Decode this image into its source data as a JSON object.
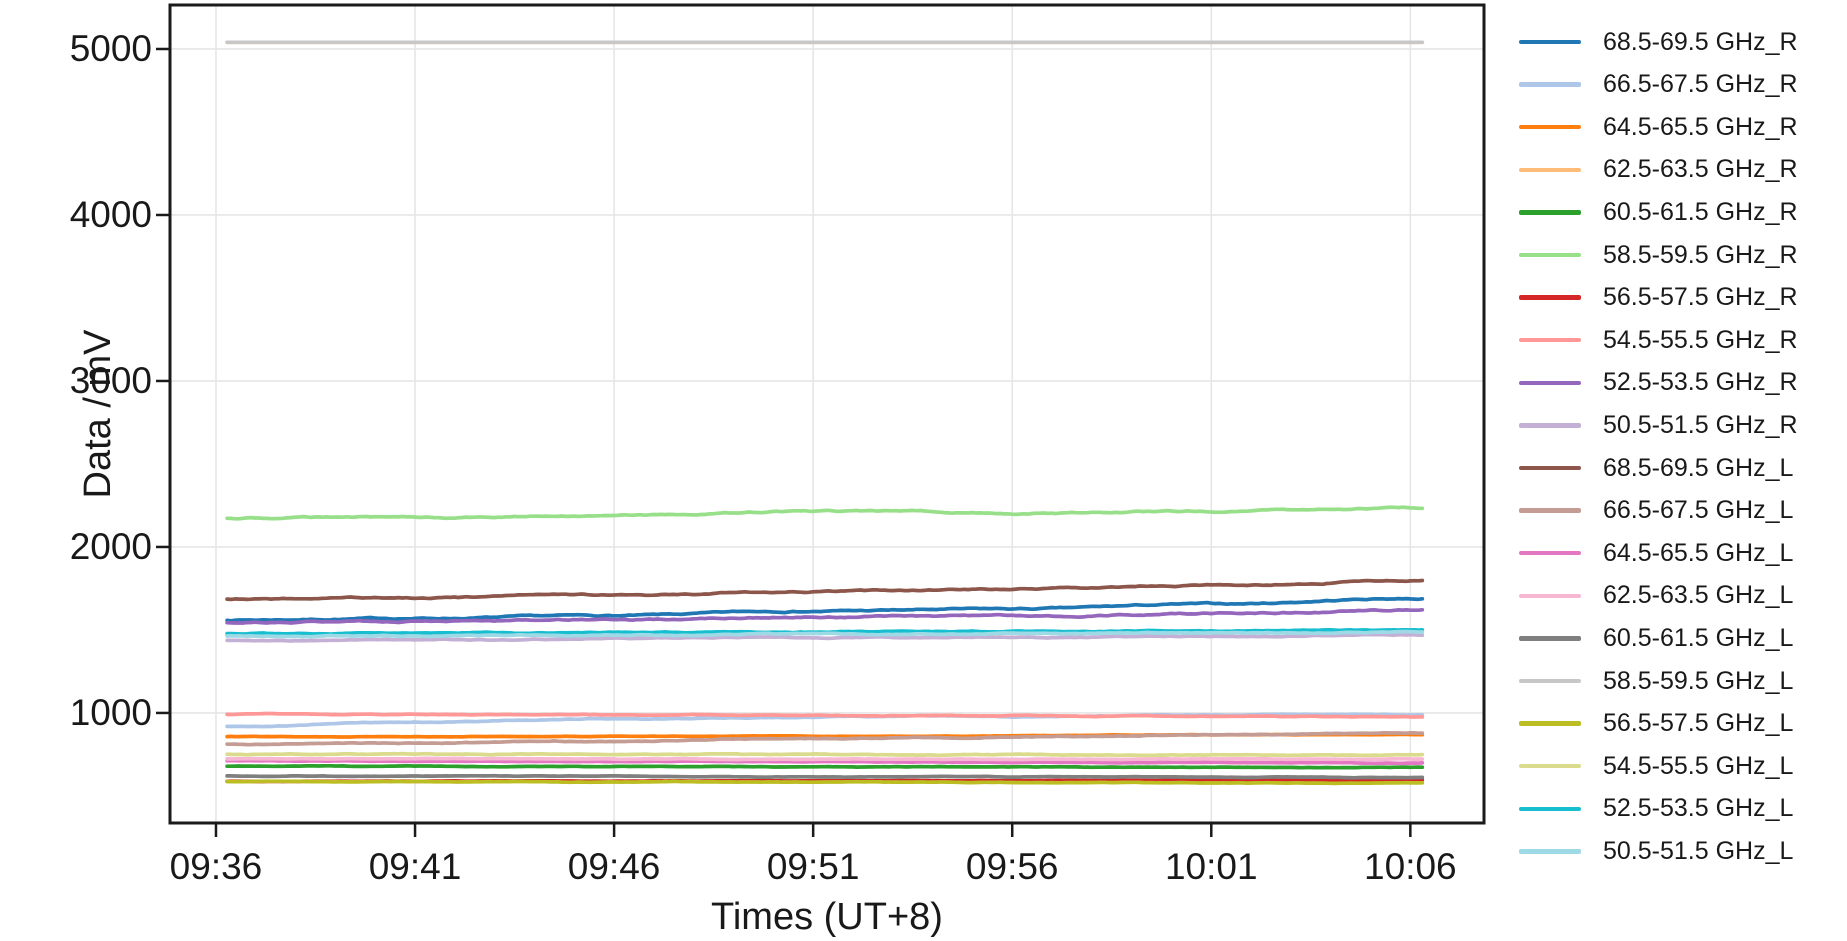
{
  "chart_data": {
    "type": "line",
    "title": "",
    "xlabel": "Times (UT+8)",
    "ylabel": "Data / mV",
    "grid": true,
    "legend_position": "right-outside",
    "x_tick_labels": [
      "09:36",
      "09:41",
      "09:46",
      "09:51",
      "09:56",
      "10:01",
      "10:06"
    ],
    "x_tick_minutes": [
      0,
      5,
      10,
      15,
      20,
      25,
      30
    ],
    "y_ticks": [
      1000,
      2000,
      3000,
      4000,
      5000
    ],
    "xlim_minutes": [
      -1.155,
      31.85
    ],
    "ylim": [
      337,
      5265
    ],
    "data_start_minute": 0.28,
    "data_end_minute": 30.3,
    "series": [
      {
        "name": "68.5-69.5 GHz_R",
        "color": "#1f77b4",
        "values": [
          1560,
          1570,
          1585,
          1615,
          1625,
          1655,
          1690
        ],
        "noise": 6
      },
      {
        "name": "66.5-67.5 GHz_R",
        "color": "#aec7e8",
        "values": [
          920,
          945,
          965,
          975,
          980,
          985,
          990
        ],
        "noise": 4
      },
      {
        "name": "64.5-65.5 GHz_R",
        "color": "#ff7f0e",
        "values": [
          858,
          858,
          860,
          860,
          862,
          868,
          870
        ],
        "noise": 2
      },
      {
        "name": "62.5-63.5 GHz_R",
        "color": "#ffbb78",
        "values": [
          5040,
          5040,
          5040,
          5040,
          5040,
          5040,
          5040
        ],
        "noise": 0
      },
      {
        "name": "60.5-61.5 GHz_R",
        "color": "#2ca02c",
        "values": [
          680,
          678,
          677,
          676,
          675,
          673,
          672
        ],
        "noise": 2
      },
      {
        "name": "58.5-59.5 GHz_R",
        "color": "#98df8a",
        "values": [
          2175,
          2180,
          2192,
          2213,
          2205,
          2215,
          2232
        ],
        "noise": 6
      },
      {
        "name": "56.5-57.5 GHz_R",
        "color": "#d62728",
        "values": [
          588,
          589,
          590,
          591,
          592,
          594,
          596
        ],
        "noise": 1.5
      },
      {
        "name": "54.5-55.5 GHz_R",
        "color": "#ff9896",
        "values": [
          992,
          990,
          988,
          985,
          982,
          980,
          978
        ],
        "noise": 3
      },
      {
        "name": "52.5-53.5 GHz_R",
        "color": "#9467bd",
        "values": [
          1545,
          1552,
          1560,
          1580,
          1585,
          1600,
          1618
        ],
        "noise": 6
      },
      {
        "name": "50.5-51.5 GHz_R",
        "color": "#c5b0d5",
        "values": [
          1438,
          1442,
          1448,
          1455,
          1458,
          1462,
          1470
        ],
        "noise": 4
      },
      {
        "name": "68.5-69.5 GHz_L",
        "color": "#8c564b",
        "values": [
          1685,
          1695,
          1710,
          1730,
          1745,
          1770,
          1798
        ],
        "noise": 6
      },
      {
        "name": "66.5-67.5 GHz_L",
        "color": "#c49c94",
        "values": [
          812,
          820,
          832,
          845,
          855,
          868,
          880
        ],
        "noise": 4
      },
      {
        "name": "64.5-65.5 GHz_L",
        "color": "#e377c2",
        "values": [
          712,
          710,
          708,
          706,
          704,
          702,
          700
        ],
        "noise": 2
      },
      {
        "name": "62.5-63.5 GHz_L",
        "color": "#f7b6d2",
        "values": [
          724,
          724,
          723,
          723,
          722,
          722,
          721
        ],
        "noise": 2
      },
      {
        "name": "60.5-61.5 GHz_L",
        "color": "#7f7f7f",
        "values": [
          620,
          619,
          618,
          616,
          615,
          613,
          612
        ],
        "noise": 2
      },
      {
        "name": "58.5-59.5 GHz_L",
        "color": "#c7c7c7",
        "values": [
          5040,
          5040,
          5040,
          5040,
          5040,
          5040,
          5040
        ],
        "noise": 0
      },
      {
        "name": "56.5-57.5 GHz_L",
        "color": "#bcbd22",
        "values": [
          586,
          585,
          584,
          582,
          581,
          579,
          578
        ],
        "noise": 2
      },
      {
        "name": "54.5-55.5 GHz_L",
        "color": "#dbdb8d",
        "values": [
          750,
          750,
          749,
          748,
          748,
          747,
          747
        ],
        "noise": 3
      },
      {
        "name": "52.5-53.5 GHz_L",
        "color": "#17becf",
        "values": [
          1478,
          1481,
          1484,
          1488,
          1491,
          1495,
          1500
        ],
        "noise": 4
      },
      {
        "name": "50.5-51.5 GHz_L",
        "color": "#9edae5",
        "values": [
          1462,
          1466,
          1470,
          1475,
          1478,
          1482,
          1488
        ],
        "noise": 4
      }
    ],
    "colors": {
      "grid": "#e6e6e6",
      "spine": "#1a1a1a",
      "text": "#191919",
      "background": "#ffffff"
    }
  }
}
